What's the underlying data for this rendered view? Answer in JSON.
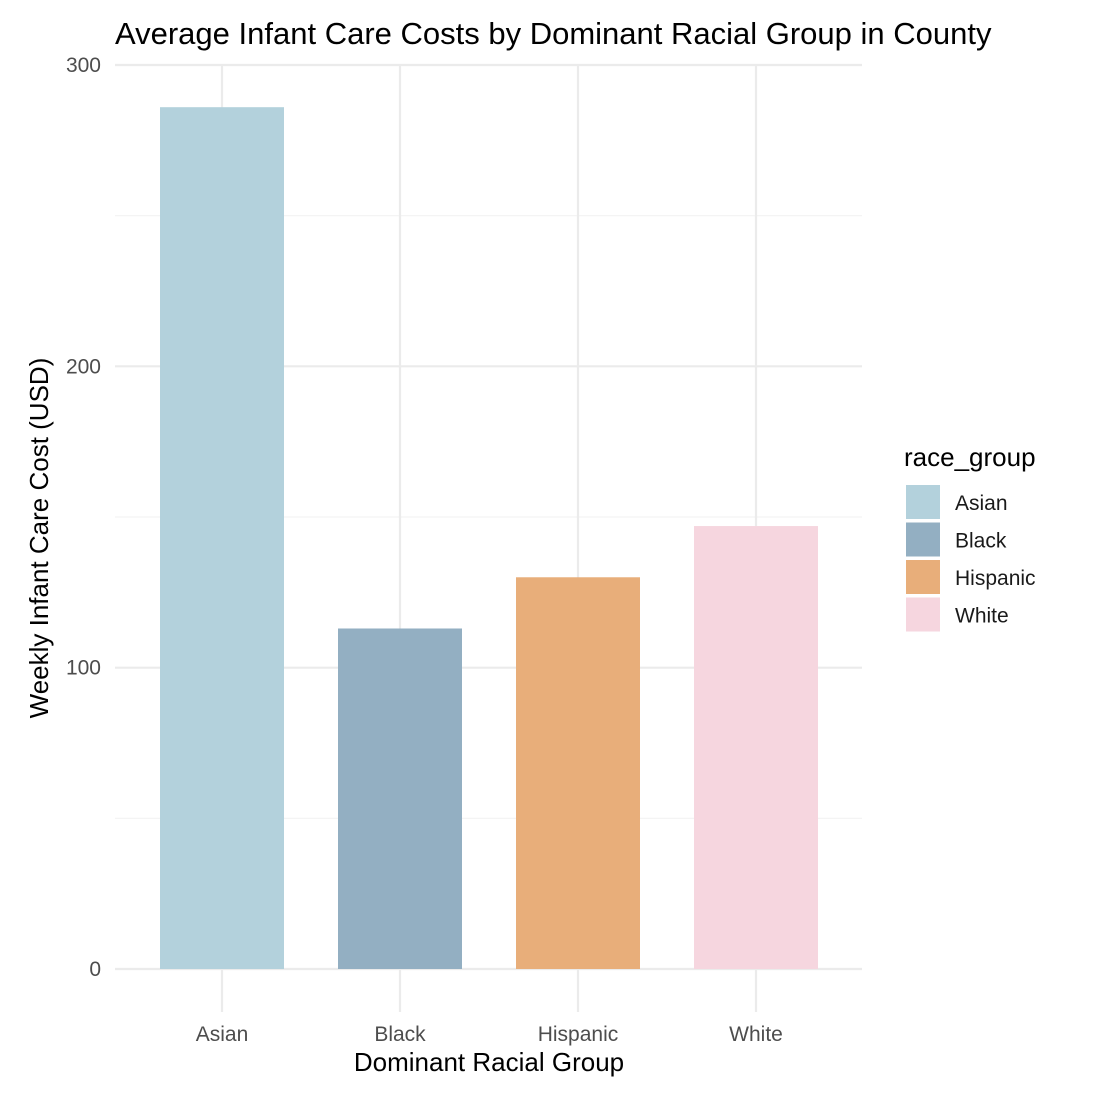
{
  "chart_data": {
    "type": "bar",
    "title": "Average Infant Care Costs by Dominant Racial Group in County",
    "xlabel": "Dominant Racial Group",
    "ylabel": "Weekly Infant Care Cost (USD)",
    "categories": [
      "Asian",
      "Black",
      "Hispanic",
      "White"
    ],
    "values": [
      286,
      113,
      130,
      147
    ],
    "colors": [
      "#b3d1dc",
      "#93afc2",
      "#e8ae7a",
      "#f6d6df"
    ],
    "ylim": [
      0,
      300
    ],
    "yticks": [
      "0",
      "100",
      "200",
      "300"
    ],
    "grid": true,
    "legend": {
      "title": "race_group",
      "placement": "right",
      "entries": [
        "Asian",
        "Black",
        "Hispanic",
        "White"
      ]
    }
  }
}
